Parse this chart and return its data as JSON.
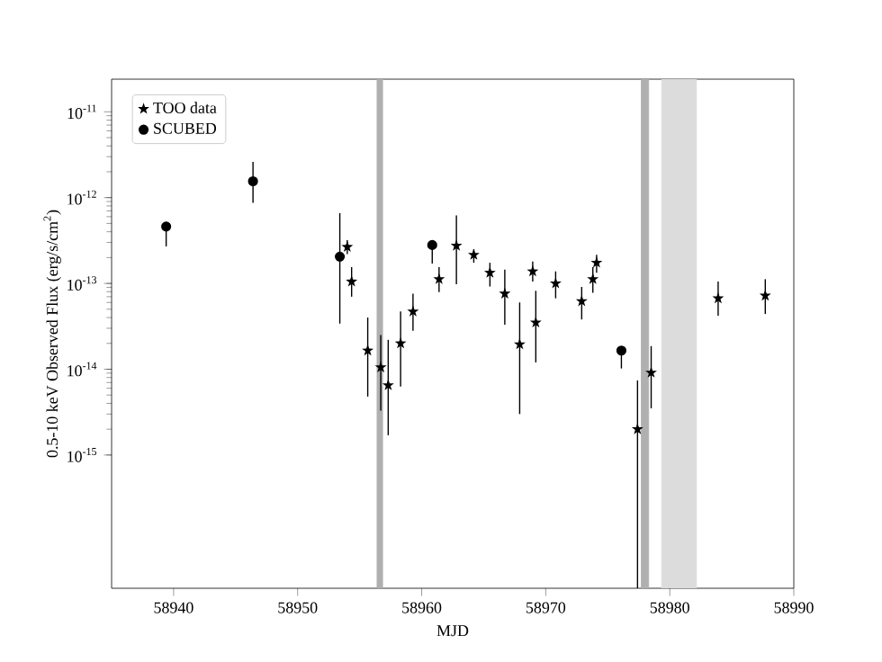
{
  "chart_data": {
    "type": "scatter",
    "xlabel": "MJD",
    "ylabel": "0.5-10 keV Observed Flux (erg/s/cm$^{2}$)",
    "xlim": [
      58935,
      58990
    ],
    "xticks": [
      58940,
      58950,
      58960,
      58970,
      58980,
      58990
    ],
    "ylim": [
      2.8e-17,
      2.4e-11
    ],
    "log": "y",
    "yticks": [
      {
        "value": 1e-15,
        "label": "10$^{-15}$"
      },
      {
        "value": 1e-14,
        "label": "10$^{-14}$"
      },
      {
        "value": 1e-13,
        "label": "10$^{-13}$"
      },
      {
        "value": 1e-12,
        "label": "10$^{-12}$"
      },
      {
        "value": 1e-11,
        "label": "10$^{-11}$"
      }
    ],
    "legend": "top left",
    "grid": false,
    "series": [
      {
        "name": "TOO data",
        "color": "#000000",
        "marker": "star",
        "x": [
          58954.0,
          58954.35,
          58955.65,
          58956.7,
          58957.3,
          58958.3,
          58959.3,
          58961.4,
          58962.8,
          58964.2,
          58965.5,
          58966.7,
          58967.9,
          58968.95,
          58969.2,
          58970.8,
          58972.9,
          58973.8,
          58974.1,
          58977.4,
          58978.5,
          58983.9,
          58987.7
        ],
        "values": [
          2.66e-13,
          1.05e-13,
          1.65e-14,
          1.05e-14,
          6.5e-15,
          2e-14,
          4.7e-14,
          1.12e-13,
          2.75e-13,
          2.15e-13,
          1.33e-13,
          7.6e-14,
          1.95e-14,
          1.38e-13,
          3.5e-14,
          1e-13,
          6.2e-14,
          1.12e-13,
          1.74e-13,
          2e-15,
          9.1e-15,
          6.7e-14,
          7.2e-14
        ],
        "errors": [
          [
            2.2e-13,
            3.2e-13
          ],
          [
            7e-14,
            1.55e-13
          ],
          [
            4.8e-15,
            4e-14
          ],
          [
            3.3e-15,
            2.5e-14
          ],
          [
            1.7e-15,
            2.2e-14
          ],
          [
            6.3e-15,
            4.7e-14
          ],
          [
            2.8e-14,
            7.6e-14
          ],
          [
            7.9e-14,
            1.55e-13
          ],
          [
            9.8e-14,
            6.2e-13
          ],
          [
            1.74e-13,
            2.5e-13
          ],
          [
            9.2e-14,
            1.74e-13
          ],
          [
            3.3e-14,
            1.45e-13
          ],
          [
            3e-15,
            6e-14
          ],
          [
            1.05e-13,
            1.8e-13
          ],
          [
            1.2e-14,
            8.2e-14
          ],
          [
            6.7e-14,
            1.38e-13
          ],
          [
            3.8e-14,
            9.1e-14
          ],
          [
            7.8e-14,
            1.55e-13
          ],
          [
            1.33e-13,
            2.15e-13
          ],
          [
            2.8e-17,
            7.4e-15
          ],
          [
            3.5e-15,
            1.86e-14
          ],
          [
            4.2e-14,
            1.05e-13
          ],
          [
            4.4e-14,
            1.12e-13
          ]
        ]
      },
      {
        "name": "SCUBED",
        "color": "#000000",
        "marker": "circle",
        "x": [
          58939.4,
          58946.4,
          58953.4,
          58960.85,
          58976.1
        ],
        "values": [
          4.6e-13,
          1.55e-12,
          2.05e-13,
          2.8e-13,
          1.65e-14
        ],
        "errors": [
          [
            2.7e-13,
            4.6e-13
          ],
          [
            8.7e-13,
            2.6e-12
          ],
          [
            3.4e-14,
            6.6e-13
          ],
          [
            1.7e-13,
            2.8e-13
          ],
          [
            1.02e-14,
            1.65e-14
          ]
        ]
      }
    ],
    "bands": [
      {
        "axis": "x",
        "from": 58956.4,
        "to": 58956.85,
        "color": "#b0b0b0"
      },
      {
        "axis": "x",
        "from": 58977.7,
        "to": 58978.3,
        "color": "#b0b0b0"
      },
      {
        "axis": "x",
        "from": 58979.35,
        "to": 58982.15,
        "color": "#dcdcdc"
      }
    ]
  }
}
